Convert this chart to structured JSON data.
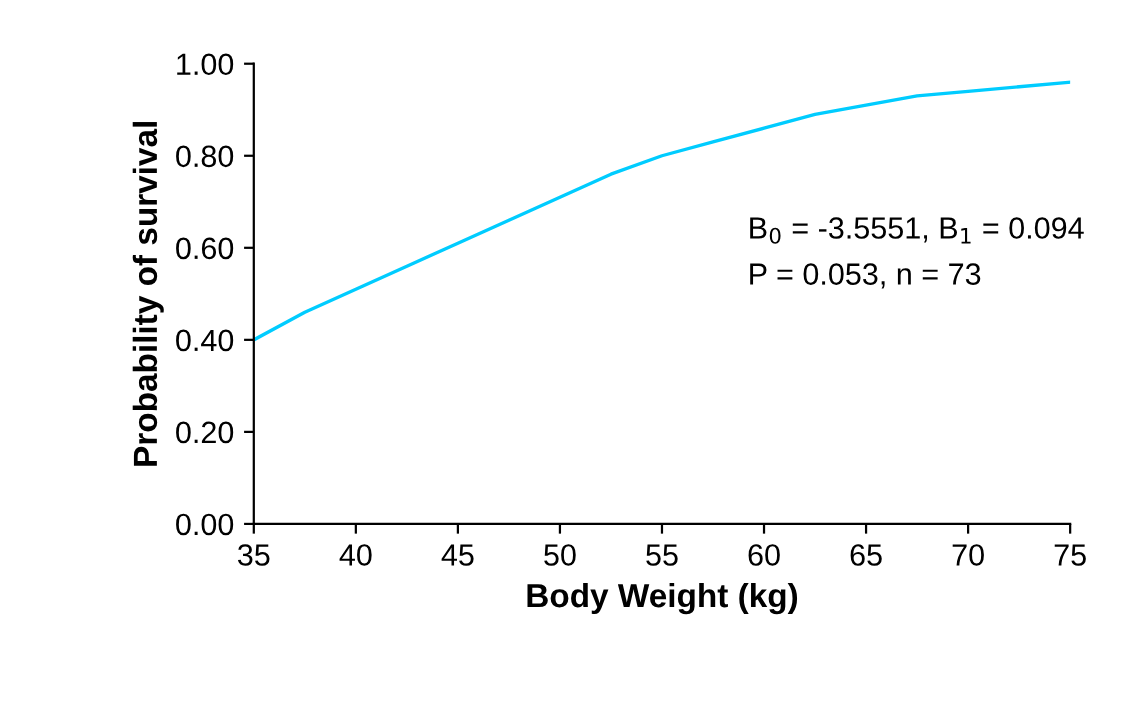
{
  "chart_data": {
    "type": "line",
    "xlabel": "Body Weight (kg)",
    "ylabel": "Probability of survival",
    "x": [
      35,
      37.5,
      40,
      42.5,
      45,
      47.5,
      50,
      52.5,
      55,
      57.5,
      60,
      62.5,
      65,
      67.5,
      70,
      72.5,
      75
    ],
    "series": [
      {
        "color": "#00ccff",
        "values": [
          0.4,
          0.46,
          0.51,
          0.56,
          0.61,
          0.66,
          0.71,
          0.76,
          0.8,
          0.83,
          0.86,
          0.89,
          0.91,
          0.93,
          0.94,
          0.95,
          0.96
        ]
      }
    ],
    "xlim": [
      35,
      75
    ],
    "xticks": [
      35,
      40,
      45,
      50,
      55,
      60,
      65,
      70,
      75
    ],
    "ylim": [
      0,
      1
    ],
    "yticks": [
      {
        "value": 0,
        "label": "0.00"
      },
      {
        "value": 0.2,
        "label": "0.20"
      },
      {
        "value": 0.4,
        "label": "0.40"
      },
      {
        "value": 0.6,
        "label": "0.60"
      },
      {
        "value": 0.8,
        "label": "0.80"
      },
      {
        "value": 1,
        "label": "1.00"
      }
    ],
    "annotations": [
      {
        "text": "B$_{0}$ = -3.5551, B$_{1}$ = 0.094"
      },
      {
        "text": "P = 0.053, n = 73"
      }
    ],
    "grid": false,
    "marker": "none",
    "line_style": "solid"
  }
}
